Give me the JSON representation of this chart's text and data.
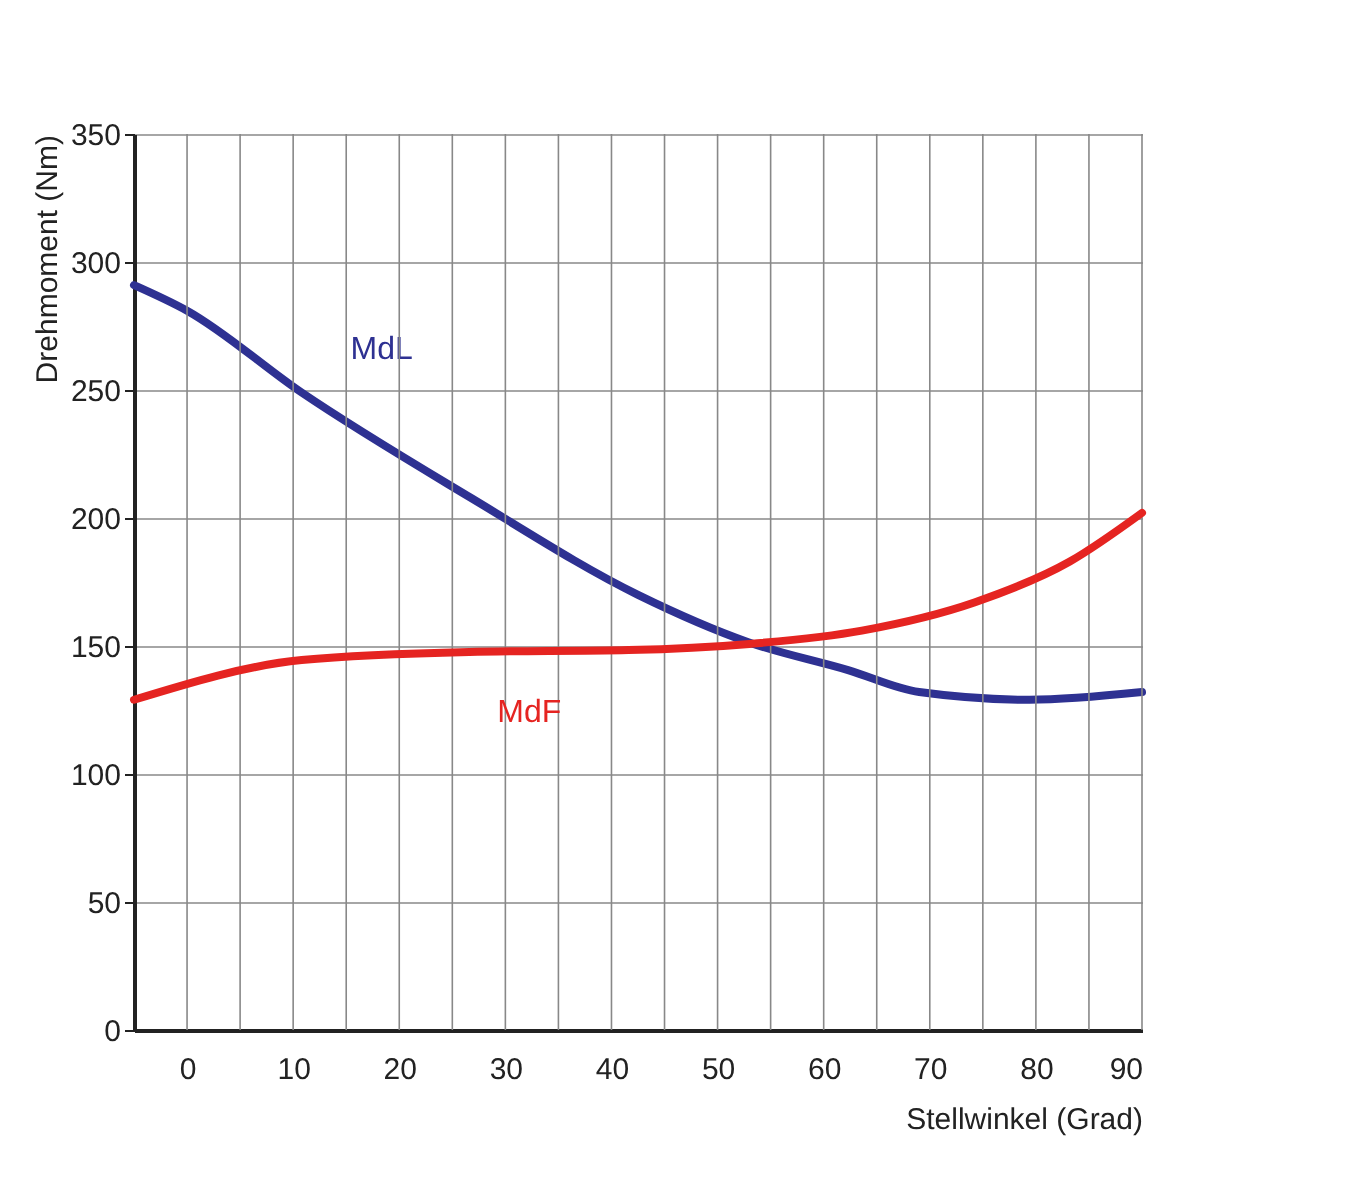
{
  "chart_data": {
    "type": "line",
    "xlabel": "Stellwinkel (Grad)",
    "ylabel": "Drehmoment (Nm)",
    "xlim": [
      -5,
      90
    ],
    "xticks": [
      0,
      {
        "value": 5,
        "label": null
      },
      10,
      {
        "value": 15,
        "label": null
      },
      20,
      {
        "value": 25,
        "label": null
      },
      30,
      {
        "value": 35,
        "label": null
      },
      40,
      {
        "value": 45,
        "label": null
      },
      50,
      {
        "value": 55,
        "label": null
      },
      60,
      {
        "value": 65,
        "label": null
      },
      70,
      {
        "value": 75,
        "label": null
      },
      80,
      {
        "value": 85,
        "label": null
      },
      90
    ],
    "ylim": [
      0,
      350
    ],
    "yticks": [
      0,
      50,
      100,
      150,
      200,
      250,
      300,
      350
    ],
    "grid": true,
    "marker": "none",
    "line_style": "solid",
    "series": [
      {
        "name": "MdL",
        "color": "#2e3192",
        "x": [
          -5,
          0,
          10.8,
          26.7,
          42.5,
          52.9,
          62.3,
          69,
          79.4,
          90
        ],
        "values": [
          291,
          281,
          249,
          208,
          170,
          151.5,
          140.6,
          132,
          129,
          132
        ]
      },
      {
        "name": "MdF",
        "color": "#e52421",
        "x": [
          -5,
          10.8,
          26.6,
          41.6,
          53,
          63.6,
          74.2,
          83.2,
          90
        ],
        "values": [
          129,
          144.5,
          147.7,
          148.4,
          150.8,
          156,
          167,
          183,
          202
        ]
      }
    ]
  }
}
